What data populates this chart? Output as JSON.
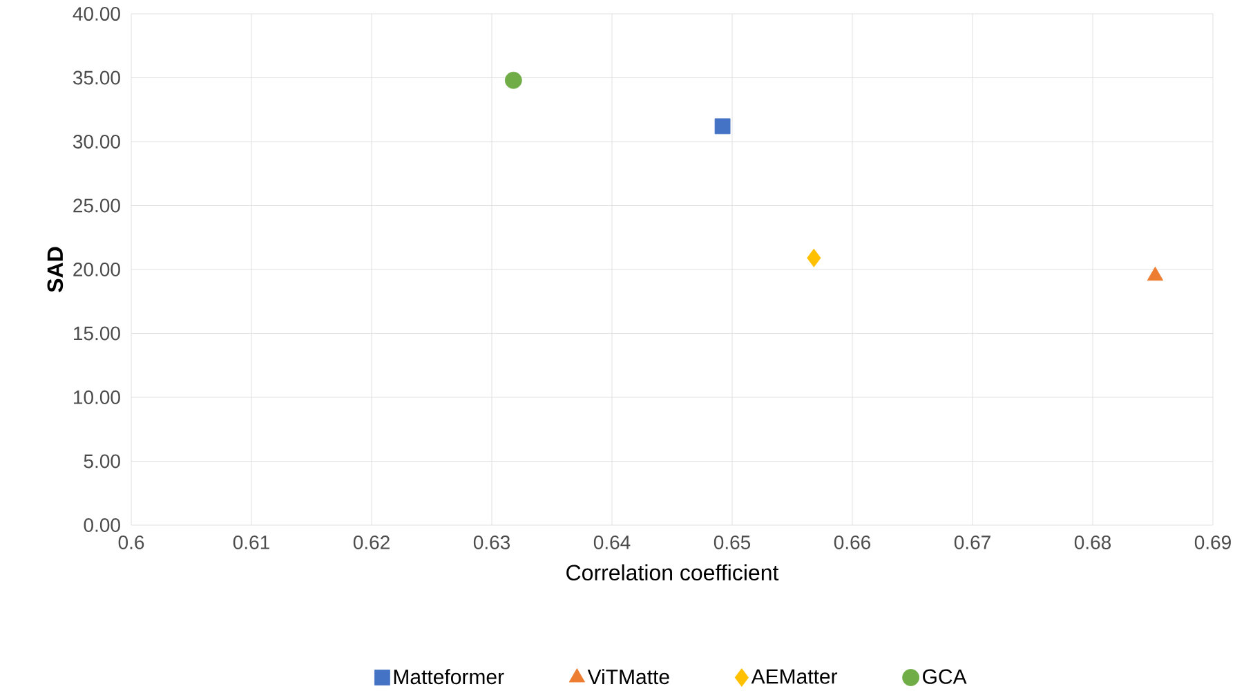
{
  "chart_data": {
    "type": "scatter",
    "xlabel": "Correlation coefficient",
    "ylabel": "SAD",
    "series": [
      {
        "name": "Matteformer",
        "color": "#4472c4",
        "marker": "square",
        "x": [
          0.6492
        ],
        "values": [
          31.2
        ]
      },
      {
        "name": "ViTMatte",
        "color": "#ed7d31",
        "marker": "triangle",
        "x": [
          0.6852
        ],
        "values": [
          19.5
        ]
      },
      {
        "name": "AEMatter",
        "color": "#ffc000",
        "marker": "diamond",
        "x": [
          0.6568
        ],
        "values": [
          20.9
        ]
      },
      {
        "name": "GCA",
        "color": "#70ad47",
        "marker": "circle",
        "x": [
          0.6318
        ],
        "values": [
          34.8
        ]
      }
    ],
    "xlim": [
      0.6,
      0.69
    ],
    "xticks": [
      0.6,
      0.61,
      0.62,
      0.63,
      0.64,
      0.65,
      0.66,
      0.67,
      0.68,
      0.69
    ],
    "ylim": [
      0,
      40
    ],
    "yticks": [
      {
        "value": 0,
        "label": "0.00"
      },
      {
        "value": 5,
        "label": "5.00"
      },
      {
        "value": 10,
        "label": "10.00"
      },
      {
        "value": 15,
        "label": "15.00"
      },
      {
        "value": 20,
        "label": "20.00"
      },
      {
        "value": 25,
        "label": "25.00"
      },
      {
        "value": 30,
        "label": "30.00"
      },
      {
        "value": 35,
        "label": "35.00"
      },
      {
        "value": 40,
        "label": "40.00"
      }
    ],
    "grid": true,
    "legend": "bottom"
  }
}
